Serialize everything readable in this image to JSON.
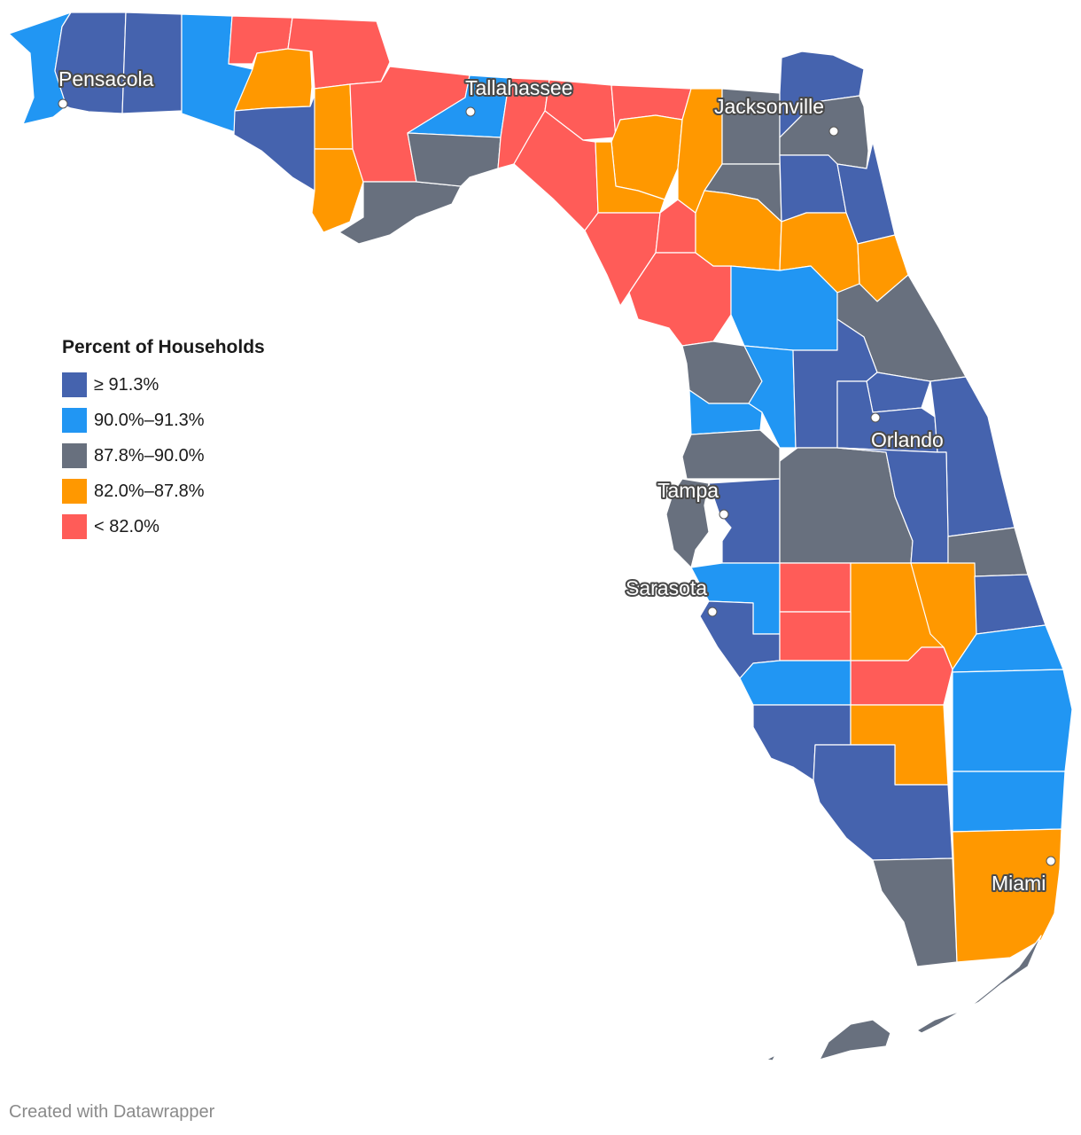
{
  "legend": {
    "title": "Percent of Households",
    "items": [
      {
        "label": "≥ 91.3%",
        "color": "#4563ae"
      },
      {
        "label": "90.0%–91.3%",
        "color": "#2196f3"
      },
      {
        "label": "87.8%–90.0%",
        "color": "#68707e"
      },
      {
        "label": "82.0%–87.8%",
        "color": "#ff9800"
      },
      {
        "label": "< 82.0%",
        "color": "#ff5c58"
      }
    ]
  },
  "cities": [
    {
      "name": "Pensacola"
    },
    {
      "name": "Tallahassee"
    },
    {
      "name": "Jacksonville"
    },
    {
      "name": "Orlando"
    },
    {
      "name": "Tampa"
    },
    {
      "name": "Sarasota"
    },
    {
      "name": "Miami"
    }
  ],
  "footer": {
    "credit": "Created with Datawrapper"
  }
}
